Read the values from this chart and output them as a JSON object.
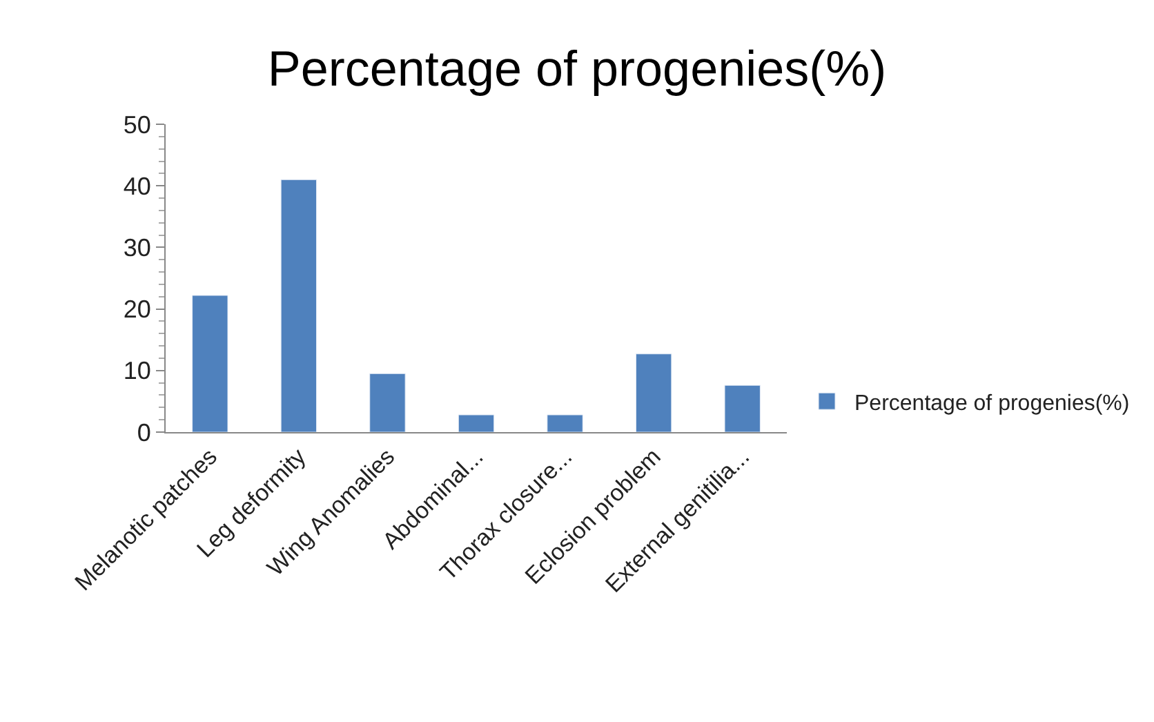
{
  "chart_data": {
    "type": "bar",
    "title": "Percentage of progenies(%)",
    "categories": [
      "Melanotic patches",
      "Leg deformity",
      "Wing Anomalies",
      "Abdominal...",
      "Thorax closure...",
      "Eclosion problem",
      "External genitilia..."
    ],
    "series": [
      {
        "name": "Percentage of progenies(%)",
        "color": "#4f81bd",
        "values": [
          22.2,
          41,
          9.5,
          2.8,
          2.8,
          12.7,
          7.6
        ]
      }
    ],
    "ylim": [
      0,
      50
    ],
    "yticks": [
      0,
      10,
      20,
      30,
      40,
      50
    ],
    "grid": false,
    "legend": "right"
  }
}
